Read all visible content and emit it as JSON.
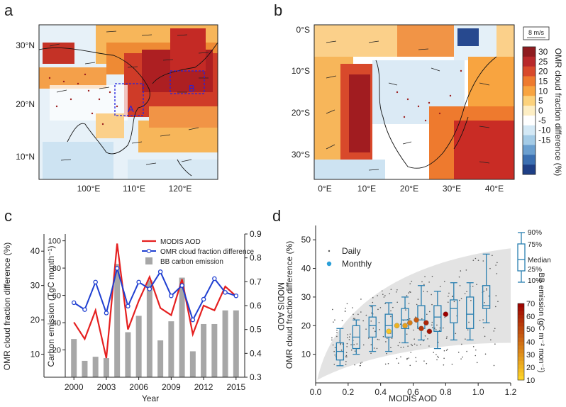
{
  "panels": {
    "a": {
      "label": "a",
      "lon_ticks": [
        "100°E",
        "110°E",
        "120°E"
      ],
      "lat_ticks": [
        "30°N",
        "20°N",
        "10°N"
      ],
      "box_labels": [
        "A",
        "B"
      ]
    },
    "b": {
      "label": "b",
      "lon_ticks": [
        "0°E",
        "10°E",
        "20°E",
        "30°E",
        "40°E"
      ],
      "lat_ticks": [
        "0°S",
        "10°S",
        "20°S",
        "30°S"
      ],
      "wind_scale": "8 m/s",
      "colorbar": {
        "title": "OMR cloud fraction difference (%)",
        "ticks": [
          "30",
          "25",
          "20",
          "15",
          "10",
          "5",
          "0",
          "-5",
          "-10",
          "-15"
        ],
        "colors": [
          "#8e1b1f",
          "#b8282a",
          "#d8492b",
          "#ee7a2e",
          "#f8a440",
          "#fcd27c",
          "#fdeec4",
          "#ffffff",
          "#d3e8f5",
          "#a4cbe6",
          "#6b9fcf",
          "#3b6fb1",
          "#1e3f86"
        ]
      }
    },
    "c": {
      "label": "c",
      "ylabel_left": "OMR cloud fraction difference (%)",
      "ylabel_inner": "Carbon emission (TgC  month⁻¹)",
      "ylabel_right": "MODIS AOD",
      "xlabel": "Year",
      "left_ticks": [
        "40",
        "30",
        "20",
        "10"
      ],
      "inner_ticks": [
        "100",
        "80",
        "60",
        "40",
        "20"
      ],
      "right_ticks": [
        "0.9",
        "0.8",
        "0.7",
        "0.6",
        "0.5",
        "0.4",
        "0.3"
      ],
      "year_ticks": [
        "2000",
        "2003",
        "2006",
        "2009",
        "2012",
        "2015"
      ],
      "legend": [
        "MODIS AOD",
        "OMR cloud fraction difference",
        "BB carbon emission"
      ]
    },
    "d": {
      "label": "d",
      "ylabel": "OMR cloud fraction difference (%)",
      "xlabel": "MODIS AOD",
      "legend_daily": "Daily",
      "legend_monthly": "Monthly",
      "box_legend": [
        "90%",
        "75%",
        "Median",
        "25%",
        "10%"
      ],
      "colorbar_title": "BB emission (gC m⁻² mon⁻¹)",
      "colorbar_ticks": [
        "70",
        "60",
        "50",
        "40",
        "30",
        "20",
        "10"
      ]
    }
  },
  "chart_data": [
    {
      "type": "line",
      "panel": "c",
      "x": [
        2000,
        2001,
        2002,
        2003,
        2004,
        2005,
        2006,
        2007,
        2008,
        2009,
        2010,
        2011,
        2012,
        2013,
        2014,
        2015
      ],
      "series": [
        {
          "name": "MODIS AOD",
          "axis": "right",
          "color": "#e52020",
          "values": [
            0.53,
            0.46,
            0.58,
            0.38,
            0.86,
            0.5,
            0.62,
            0.72,
            0.59,
            0.56,
            0.71,
            0.48,
            0.6,
            0.58,
            0.68,
            0.64
          ]
        },
        {
          "name": "OMR cloud fraction difference",
          "axis": "left",
          "color": "#1f3fd1",
          "values": [
            25,
            23,
            31,
            22,
            35,
            24,
            31,
            29,
            34,
            27,
            30,
            20,
            26,
            32,
            28,
            27
          ]
        },
        {
          "name": "BB carbon emission",
          "type": "bar",
          "axis": "inner",
          "color": "#a7a7a7",
          "values": [
            28,
            12,
            15,
            14,
            83,
            33,
            45,
            71,
            27,
            41,
            73,
            19,
            39,
            39,
            49,
            49
          ]
        }
      ],
      "xlim": [
        1999.2,
        2015.8
      ],
      "left_ylim": [
        3.3,
        45
      ],
      "inner_ylim": [
        0,
        105
      ],
      "right_ylim": [
        0.3,
        0.9
      ]
    },
    {
      "type": "box",
      "panel": "d",
      "xlim": [
        0,
        1.2
      ],
      "ylim": [
        0,
        55
      ],
      "x_ticks": [
        "0.0",
        "0.2",
        "0.4",
        "0.6",
        "0.8",
        "1.0",
        "1.2"
      ],
      "y_ticks": [
        "10",
        "20",
        "30",
        "40",
        "50"
      ],
      "boxes": [
        {
          "x": 0.15,
          "p10": 6,
          "p25": 8,
          "median": 11,
          "p75": 14,
          "p90": 19
        },
        {
          "x": 0.25,
          "p10": 10,
          "p25": 12,
          "median": 16,
          "p75": 20,
          "p90": 22
        },
        {
          "x": 0.35,
          "p10": 11,
          "p25": 16,
          "median": 20,
          "p75": 23,
          "p90": 27
        },
        {
          "x": 0.45,
          "p10": 11,
          "p25": 16,
          "median": 20,
          "p75": 24,
          "p90": 28
        },
        {
          "x": 0.55,
          "p10": 14,
          "p25": 19,
          "median": 22,
          "p75": 26,
          "p90": 30
        },
        {
          "x": 0.65,
          "p10": 15,
          "p25": 19,
          "median": 22,
          "p75": 27,
          "p90": 34
        },
        {
          "x": 0.75,
          "p10": 12,
          "p25": 18,
          "median": 23,
          "p75": 27,
          "p90": 32
        },
        {
          "x": 0.85,
          "p10": 15,
          "p25": 21,
          "median": 26,
          "p75": 29,
          "p90": 35
        },
        {
          "x": 0.95,
          "p10": 15,
          "p25": 19,
          "median": 24,
          "p75": 30,
          "p90": 35
        },
        {
          "x": 1.05,
          "p10": 21,
          "p25": 26,
          "median": 27,
          "p75": 34,
          "p90": 45
        }
      ],
      "monthly": [
        {
          "x": 0.45,
          "y": 18,
          "e": 15
        },
        {
          "x": 0.5,
          "y": 20,
          "e": 20
        },
        {
          "x": 0.55,
          "y": 20,
          "e": 25
        },
        {
          "x": 0.58,
          "y": 21,
          "e": 35
        },
        {
          "x": 0.62,
          "y": 22,
          "e": 45
        },
        {
          "x": 0.65,
          "y": 19,
          "e": 55
        },
        {
          "x": 0.68,
          "y": 21,
          "e": 60
        },
        {
          "x": 0.7,
          "y": 18,
          "e": 65
        },
        {
          "x": 0.8,
          "y": 24,
          "e": 70
        }
      ]
    }
  ]
}
